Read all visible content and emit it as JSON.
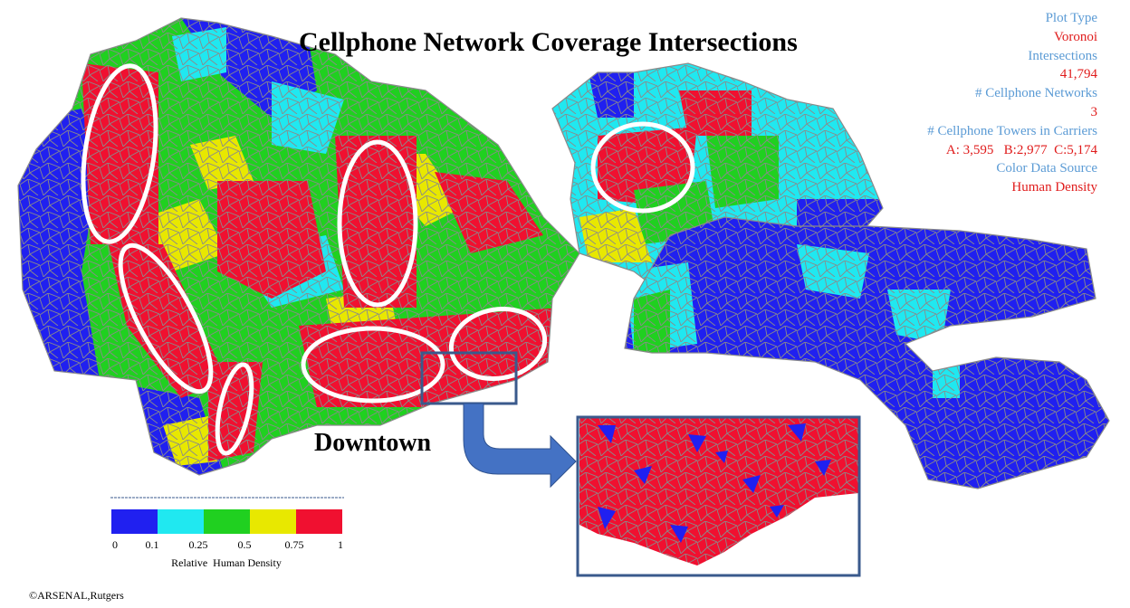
{
  "title": "Cellphone Network Coverage Intersections",
  "info": [
    {
      "label": "Plot Type",
      "value": "Voronoi"
    },
    {
      "label": "Intersections",
      "value": "41,794"
    },
    {
      "label": "# Cellphone Networks",
      "value": "3"
    },
    {
      "label": "# Cellphone Towers in Carriers",
      "value": "A: 3,595   B:2,977  C:5,174"
    },
    {
      "label": "Color Data Source",
      "value": "Human Density"
    }
  ],
  "callout_label": "Downtown",
  "legend": {
    "title": "Relative  Human Density",
    "ticks": [
      "0",
      "0.1",
      "0.25",
      "0.5",
      "0.75",
      "1"
    ],
    "colors": [
      "#2020f0",
      "#20e8f0",
      "#20d020",
      "#e8e800",
      "#f01030"
    ]
  },
  "colors": {
    "blue": "#2020f0",
    "cyan": "#20e8f0",
    "green": "#20d020",
    "yellow": "#e8e800",
    "red": "#f01030",
    "cell_border": "#8a8a8a",
    "highlight": "#ffffff",
    "callout": "#3a5a8c",
    "arrow": "#4472c4"
  },
  "copyright": "©ARSENAL,Rutgers"
}
